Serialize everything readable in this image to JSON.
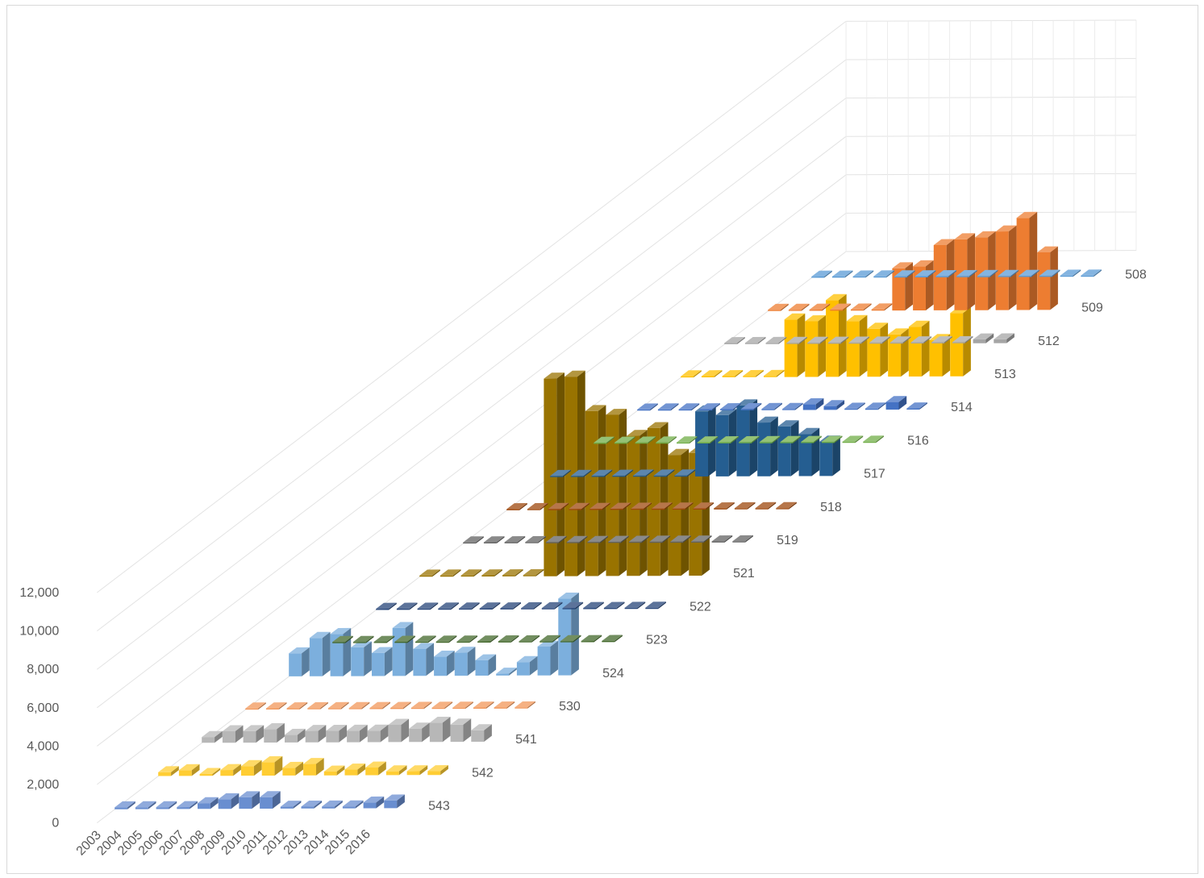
{
  "chart_data": {
    "type": "bar",
    "subtype": "3d-column",
    "title": "",
    "xlabel": "",
    "ylabel": "",
    "ylim": [
      0,
      12000
    ],
    "y_ticks": [
      "0",
      "2,000",
      "4,000",
      "6,000",
      "8,000",
      "10,000",
      "12,000"
    ],
    "y_tick_values": [
      0,
      2000,
      4000,
      6000,
      8000,
      10000,
      12000
    ],
    "categories": [
      "2003",
      "2004",
      "2005",
      "2006",
      "2007",
      "2008",
      "2009",
      "2010",
      "2011",
      "2012",
      "2013",
      "2014",
      "2015",
      "2016"
    ],
    "grid": true,
    "legend": "none",
    "series": [
      {
        "label": "508",
        "color": "#5b9bd5",
        "values": [
          0,
          0,
          0,
          0,
          0,
          0,
          0,
          0,
          0,
          0,
          0,
          0,
          0,
          0
        ]
      },
      {
        "label": "509",
        "color": "#ed7d31",
        "values": [
          0,
          0,
          0,
          0,
          0,
          0,
          2200,
          2300,
          3400,
          3700,
          3800,
          4100,
          4800,
          3000
        ]
      },
      {
        "label": "512",
        "color": "#a5a5a5",
        "values": [
          0,
          0,
          0,
          0,
          0,
          0,
          0,
          0,
          0,
          0,
          0,
          0,
          200,
          200
        ]
      },
      {
        "label": "513",
        "color": "#ffc000",
        "values": [
          0,
          0,
          0,
          0,
          0,
          3000,
          2900,
          4000,
          2900,
          2500,
          2200,
          2600,
          1900,
          3300
        ]
      },
      {
        "label": "514",
        "color": "#4472c4",
        "values": [
          0,
          0,
          0,
          0,
          0,
          0,
          0,
          0,
          300,
          200,
          0,
          0,
          400,
          0
        ]
      },
      {
        "label": "516",
        "color": "#70ad47",
        "values": [
          0,
          0,
          0,
          0,
          0,
          0,
          0,
          0,
          0,
          0,
          0,
          0,
          0,
          0
        ]
      },
      {
        "label": "517",
        "color": "#255e91",
        "values": [
          0,
          0,
          0,
          0,
          0,
          0,
          0,
          3400,
          3200,
          3700,
          2800,
          2600,
          2200,
          1800
        ]
      },
      {
        "label": "518",
        "color": "#9e480e",
        "values": [
          0,
          0,
          0,
          0,
          0,
          0,
          0,
          0,
          0,
          0,
          0,
          0,
          0,
          0
        ]
      },
      {
        "label": "519",
        "color": "#636363",
        "values": [
          0,
          0,
          0,
          0,
          0,
          0,
          0,
          0,
          0,
          0,
          0,
          0,
          0,
          0
        ]
      },
      {
        "label": "521",
        "color": "#997300",
        "values": [
          0,
          0,
          0,
          0,
          0,
          0,
          10300,
          10400,
          8600,
          8400,
          7300,
          7700,
          6300,
          6400
        ]
      },
      {
        "label": "522",
        "color": "#264478",
        "values": [
          0,
          0,
          0,
          0,
          0,
          0,
          0,
          0,
          0,
          0,
          0,
          0,
          0,
          0
        ]
      },
      {
        "label": "523",
        "color": "#43682b",
        "values": [
          0,
          0,
          0,
          0,
          0,
          0,
          0,
          0,
          0,
          0,
          0,
          0,
          0,
          0
        ]
      },
      {
        "label": "524",
        "color": "#7cafdd",
        "values": [
          1200,
          2000,
          2200,
          1500,
          1200,
          2500,
          1400,
          1000,
          1200,
          800,
          100,
          700,
          1500,
          4000
        ]
      },
      {
        "label": "530",
        "color": "#f1975a",
        "values": [
          0,
          0,
          0,
          0,
          0,
          0,
          0,
          0,
          0,
          0,
          0,
          0,
          0,
          0
        ]
      },
      {
        "label": "541",
        "color": "#b7b7b7",
        "values": [
          300,
          600,
          600,
          700,
          400,
          600,
          600,
          600,
          600,
          900,
          700,
          1000,
          900,
          600
        ]
      },
      {
        "label": "542",
        "color": "#ffcd33",
        "values": [
          200,
          300,
          100,
          300,
          500,
          700,
          400,
          600,
          200,
          300,
          400,
          200,
          200,
          200
        ]
      },
      {
        "label": "543",
        "color": "#698ed0",
        "values": [
          100,
          100,
          100,
          100,
          300,
          500,
          600,
          600,
          100,
          100,
          100,
          100,
          300,
          400
        ]
      }
    ]
  }
}
